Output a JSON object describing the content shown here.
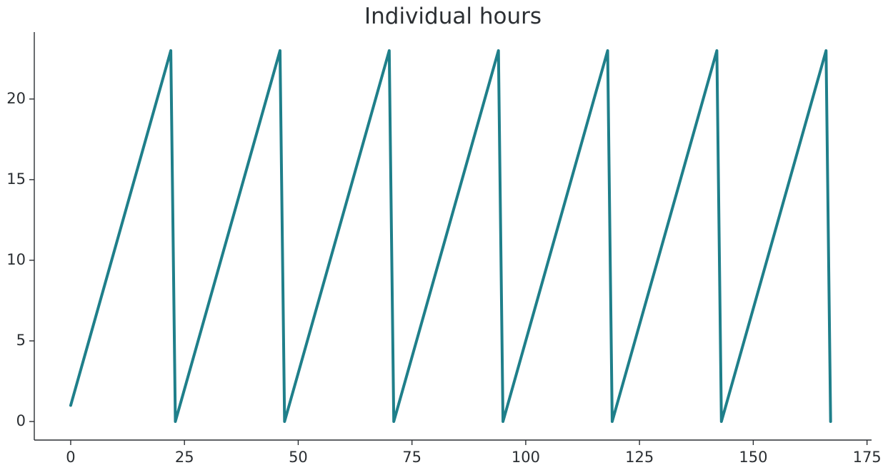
{
  "chart_data": {
    "type": "line",
    "title": "Individual hours",
    "xlabel": "",
    "ylabel": "",
    "xlim": [
      -8,
      176
    ],
    "ylim": [
      -1.15,
      24.15
    ],
    "xticks": [
      0,
      25,
      50,
      75,
      100,
      125,
      150,
      175
    ],
    "yticks": [
      0,
      5,
      10,
      15,
      20
    ],
    "grid": false,
    "spines": [
      "left",
      "bottom"
    ],
    "line_color": "#1f7f8a",
    "series": [
      {
        "x": [
          0,
          22,
          23,
          46,
          47,
          70,
          71,
          94,
          95,
          118,
          119,
          142,
          143,
          166,
          167
        ],
        "y": [
          1,
          23,
          0,
          23,
          0,
          23,
          0,
          23,
          0,
          23,
          0,
          23,
          0,
          23,
          0
        ]
      }
    ]
  }
}
